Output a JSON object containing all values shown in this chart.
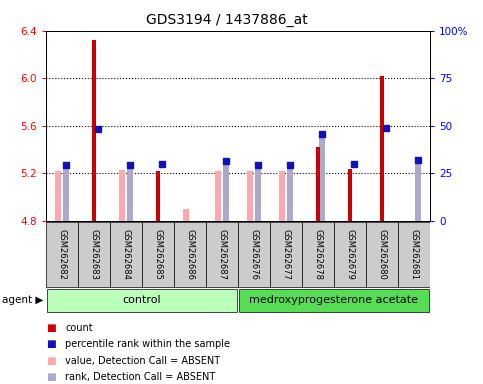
{
  "title": "GDS3194 / 1437886_at",
  "samples": [
    "GSM262682",
    "GSM262683",
    "GSM262684",
    "GSM262685",
    "GSM262686",
    "GSM262687",
    "GSM262676",
    "GSM262677",
    "GSM262678",
    "GSM262679",
    "GSM262680",
    "GSM262681"
  ],
  "value_absent": [
    5.22,
    null,
    5.23,
    null,
    4.9,
    5.22,
    5.22,
    5.22,
    null,
    null,
    null,
    null
  ],
  "rank_absent": [
    5.27,
    null,
    5.27,
    null,
    null,
    5.3,
    5.27,
    5.27,
    5.53,
    null,
    null,
    5.31
  ],
  "count_red": [
    null,
    6.32,
    null,
    5.22,
    null,
    null,
    null,
    null,
    5.42,
    5.24,
    6.02,
    null
  ],
  "percentile_blue": [
    5.27,
    5.57,
    5.27,
    5.28,
    null,
    5.3,
    5.27,
    5.27,
    5.53,
    5.28,
    5.58,
    5.31
  ],
  "ylim_left": [
    4.8,
    6.4
  ],
  "ylim_right": [
    0,
    100
  ],
  "yticks_left": [
    4.8,
    5.2,
    5.6,
    6.0,
    6.4
  ],
  "yticks_right": [
    0,
    25,
    50,
    75,
    100
  ],
  "ytick_labels_right": [
    "0",
    "25",
    "50",
    "75",
    "100%"
  ],
  "color_red": "#CC0000",
  "color_blue": "#1111BB",
  "color_pink": "#FFAAAA",
  "color_lightblue": "#AAAACC",
  "color_control_bg": "#BBFFBB",
  "color_treat_bg": "#55DD55",
  "color_sample_bg": "#CCCCCC",
  "control_count": 6,
  "treat_count": 6
}
